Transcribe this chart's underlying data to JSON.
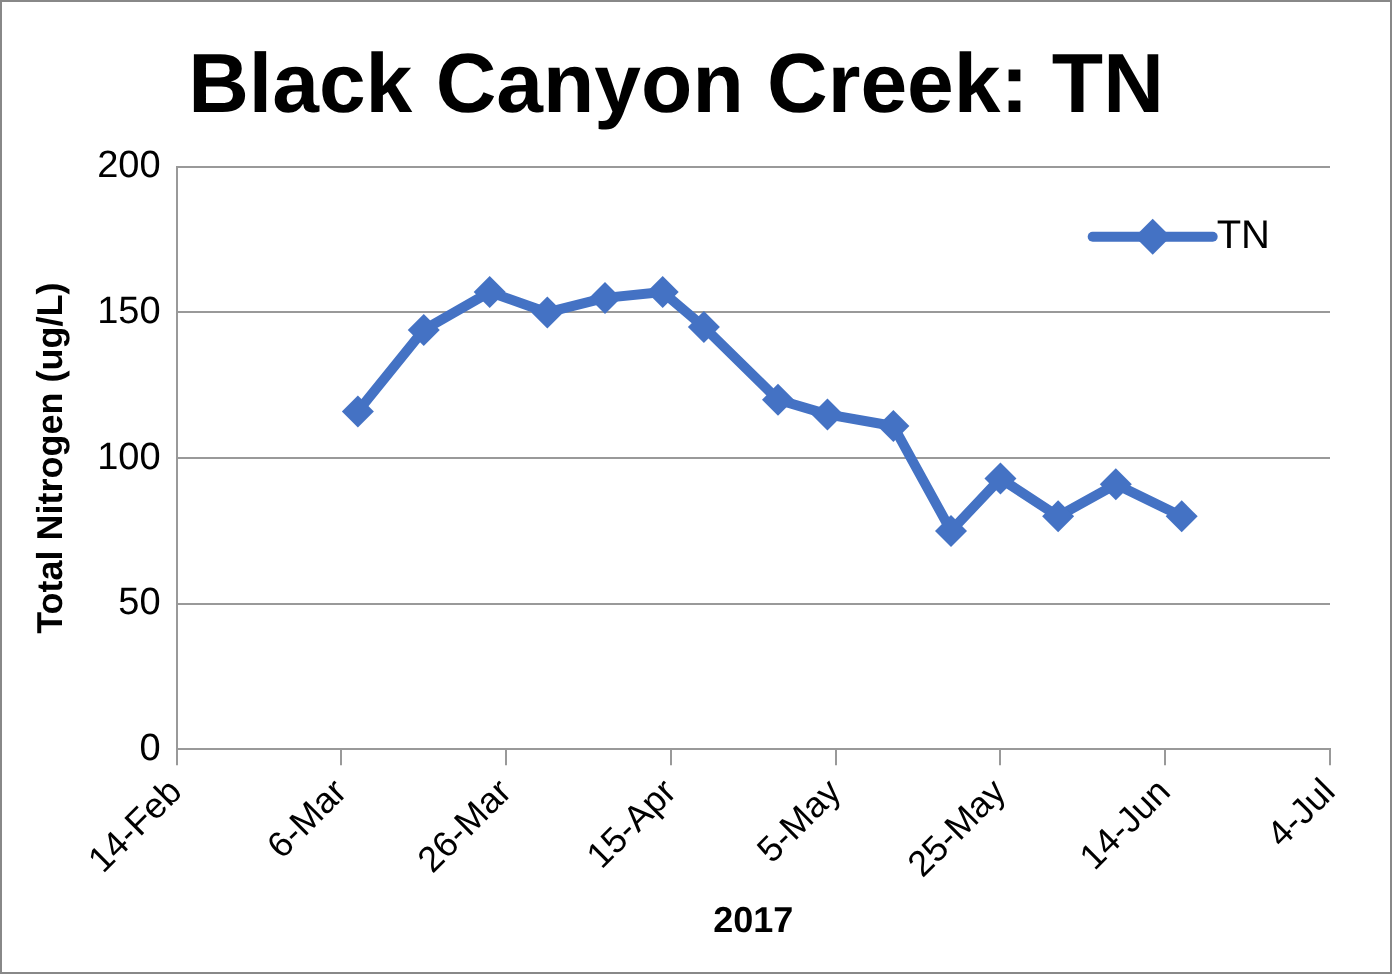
{
  "chart_data": {
    "type": "line",
    "title": "Black Canyon Creek: TN",
    "xlabel": "2017",
    "ylabel": "Total Nitrogen (ug/L)",
    "x": [
      "2017-03-08",
      "2017-03-16",
      "2017-03-24",
      "2017-03-31",
      "2017-04-07",
      "2017-04-14",
      "2017-04-19",
      "2017-04-28",
      "2017-05-04",
      "2017-05-12",
      "2017-05-19",
      "2017-05-25",
      "2017-06-01",
      "2017-06-08",
      "2017-06-16"
    ],
    "series": [
      {
        "name": "TN",
        "color": "#4472c4",
        "values": [
          116,
          144,
          157,
          150,
          155,
          157,
          145,
          120,
          115,
          111,
          75,
          93,
          80,
          91,
          80
        ]
      }
    ],
    "xlim": [
      "2017-02-14",
      "2017-07-04"
    ],
    "xticks": [
      {
        "value": "2017-02-14",
        "label": "14-Feb"
      },
      {
        "value": "2017-03-06",
        "label": "6-Mar"
      },
      {
        "value": "2017-03-26",
        "label": "26-Mar"
      },
      {
        "value": "2017-04-15",
        "label": "15-Apr"
      },
      {
        "value": "2017-05-05",
        "label": "5-May"
      },
      {
        "value": "2017-05-25",
        "label": "25-May"
      },
      {
        "value": "2017-06-14",
        "label": "14-Jun"
      },
      {
        "value": "2017-07-04",
        "label": "4-Jul"
      }
    ],
    "ylim": [
      0,
      200
    ],
    "yticks": [
      0,
      50,
      100,
      150,
      200
    ],
    "grid": "y",
    "legend": "top right",
    "marker": "diamond",
    "line_style": "solid"
  }
}
